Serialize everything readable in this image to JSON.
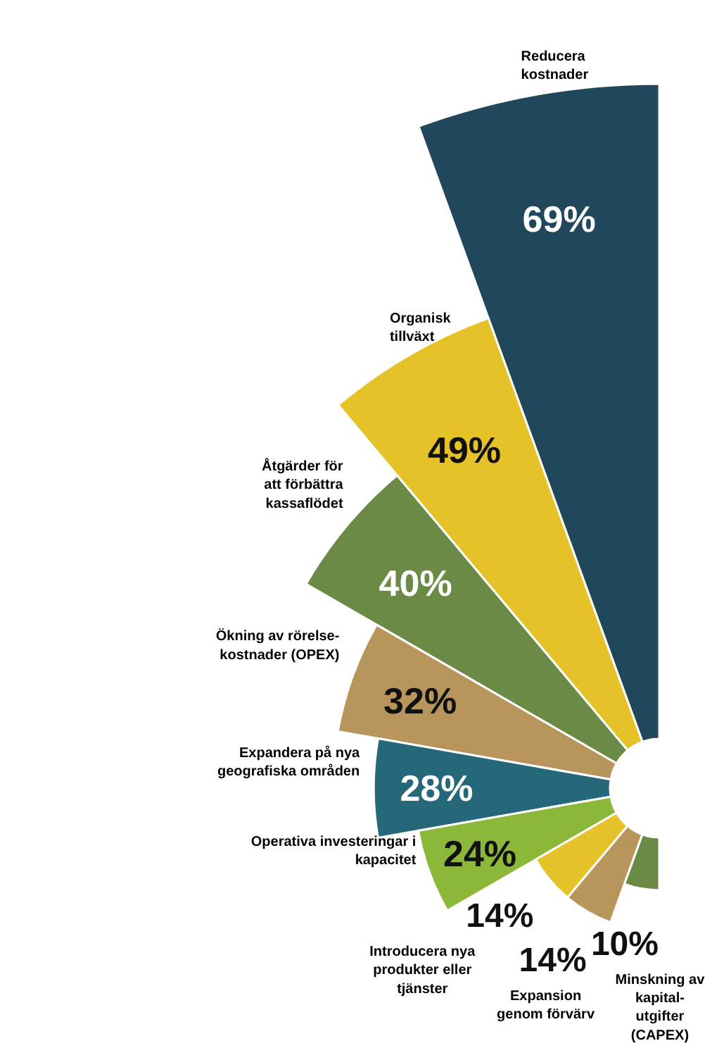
{
  "chart_data": {
    "type": "other",
    "categories": [
      "Reducera kostnader",
      "Organisk tillväxt",
      "Åtgärder för att förbättra kassaflödet",
      "Ökning av rörelse-kostnader (OPEX)",
      "Expandera på nya geografiska områden",
      "Operativa investeringar i kapacitet",
      "Introducera nya produkter eller tjänster",
      "Expansion genom förvärv",
      "Minskning av kapital-utgifter (CAPEX)"
    ],
    "values": [
      69,
      49,
      40,
      32,
      28,
      24,
      14,
      14,
      10
    ],
    "value_labels": [
      "69%",
      "49%",
      "40%",
      "32%",
      "28%",
      "24%",
      "14%",
      "14%",
      "10%"
    ],
    "colors": [
      "#21475a",
      "#e6c229",
      "#6b8a45",
      "#b8955a",
      "#24687a",
      "#8cb83a",
      "#e6c229",
      "#b8955a",
      "#6b8a45"
    ]
  }
}
